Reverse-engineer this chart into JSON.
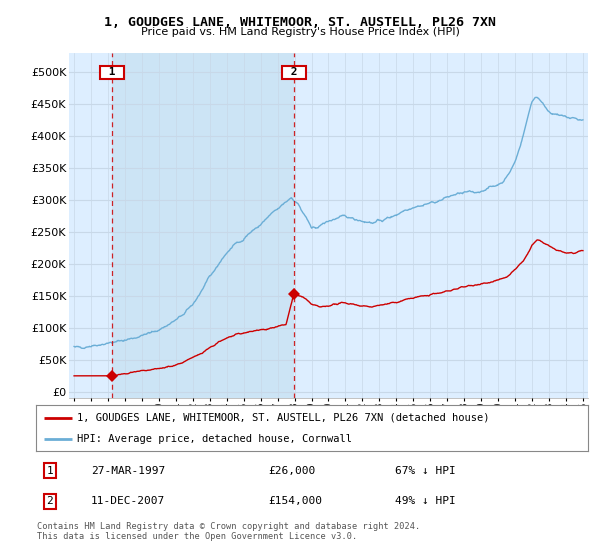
{
  "title": "1, GOUDGES LANE, WHITEMOOR, ST. AUSTELL, PL26 7XN",
  "subtitle": "Price paid vs. HM Land Registry's House Price Index (HPI)",
  "legend_line1": "1, GOUDGES LANE, WHITEMOOR, ST. AUSTELL, PL26 7XN (detached house)",
  "legend_line2": "HPI: Average price, detached house, Cornwall",
  "footnote": "Contains HM Land Registry data © Crown copyright and database right 2024.\nThis data is licensed under the Open Government Licence v3.0.",
  "transaction1_date": "27-MAR-1997",
  "transaction1_price": "£26,000",
  "transaction1_hpi": "67% ↓ HPI",
  "transaction1_year": 1997.23,
  "transaction1_value": 26000,
  "transaction2_date": "11-DEC-2007",
  "transaction2_price": "£154,000",
  "transaction2_hpi": "49% ↓ HPI",
  "transaction2_year": 2007.95,
  "transaction2_value": 154000,
  "hpi_color": "#6baed6",
  "price_color": "#cc0000",
  "background_color": "#ddeeff",
  "highlight_color": "#cce4f5",
  "grid_color": "#c8d8e8",
  "vline_color": "#cc0000",
  "ylim_max": 530000,
  "ylim_min": -8000
}
